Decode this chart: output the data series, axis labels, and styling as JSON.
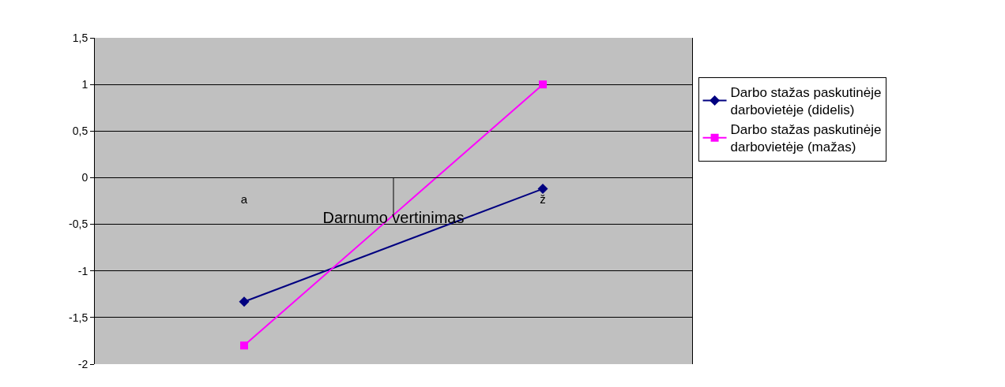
{
  "chart_data": {
    "type": "line",
    "xlabel": "Darnumo vertinimas",
    "categories": [
      "a",
      "ž"
    ],
    "series": [
      {
        "name": "Darbo stažas paskutinėje darbovietėje (didelis)",
        "color": "#000080",
        "marker": "diamond",
        "values": [
          -1.33,
          -0.12
        ]
      },
      {
        "name": "Darbo stažas paskutinėje darbovietėje (mažas)",
        "color": "#ff00ff",
        "marker": "square",
        "values": [
          -1.8,
          1.0
        ]
      }
    ],
    "ylim": [
      -2,
      1.5
    ],
    "yticks": [
      {
        "value": -2,
        "label": "-2"
      },
      {
        "value": -1.5,
        "label": "-1,5"
      },
      {
        "value": -1,
        "label": "-1"
      },
      {
        "value": -0.5,
        "label": "-0,5"
      },
      {
        "value": 0,
        "label": "0"
      },
      {
        "value": 0.5,
        "label": "0,5"
      },
      {
        "value": 1,
        "label": "1"
      },
      {
        "value": 1.5,
        "label": "1,5"
      }
    ],
    "grid": "y",
    "legend": "right",
    "line_style": "solid"
  }
}
